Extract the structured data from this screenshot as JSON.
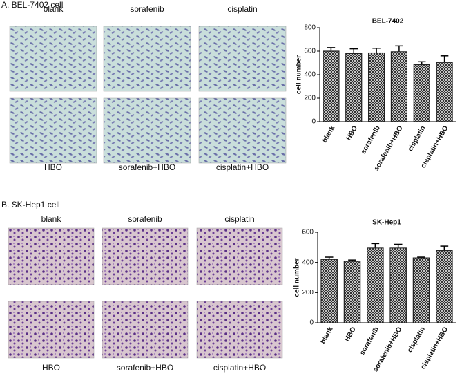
{
  "panels": [
    {
      "title": "A. BEL-7402 cell",
      "image_labels": [
        "blank",
        "sorafenib",
        "cisplatin",
        "HBO",
        "sorafenib+HBO",
        "cisplatin+HBO"
      ]
    },
    {
      "title": "B. SK-Hep1 cell",
      "image_labels": [
        "blank",
        "sorafenib",
        "cisplatin",
        "HBO",
        "sorafenib+HBO",
        "cisplatin+HBO"
      ]
    }
  ],
  "chart_data": [
    {
      "type": "bar",
      "title": "BEL-7402",
      "y_label": "cell number",
      "categories": [
        "blank",
        "HBO",
        "sorafenib",
        "sorafenib+HBO",
        "cisplatin",
        "cisplatin+HBO"
      ],
      "values": [
        600,
        580,
        585,
        595,
        485,
        505
      ],
      "errors": [
        30,
        40,
        40,
        50,
        25,
        55
      ],
      "color": "#222222",
      "ylim": [
        0,
        800
      ],
      "yticks": [
        0,
        200,
        400,
        600,
        800
      ]
    },
    {
      "type": "bar",
      "title": "SK-Hep1",
      "y_label": "cell number",
      "categories": [
        "blank",
        "HBO",
        "sorafenib",
        "sorafenib+HBO",
        "cisplatin",
        "cisplatin+HBO"
      ],
      "values": [
        420,
        408,
        495,
        495,
        430,
        478
      ],
      "errors": [
        15,
        8,
        30,
        25,
        5,
        30
      ],
      "color": "#222222",
      "ylim": [
        0,
        600
      ],
      "yticks": [
        0,
        200,
        400,
        600
      ]
    }
  ]
}
